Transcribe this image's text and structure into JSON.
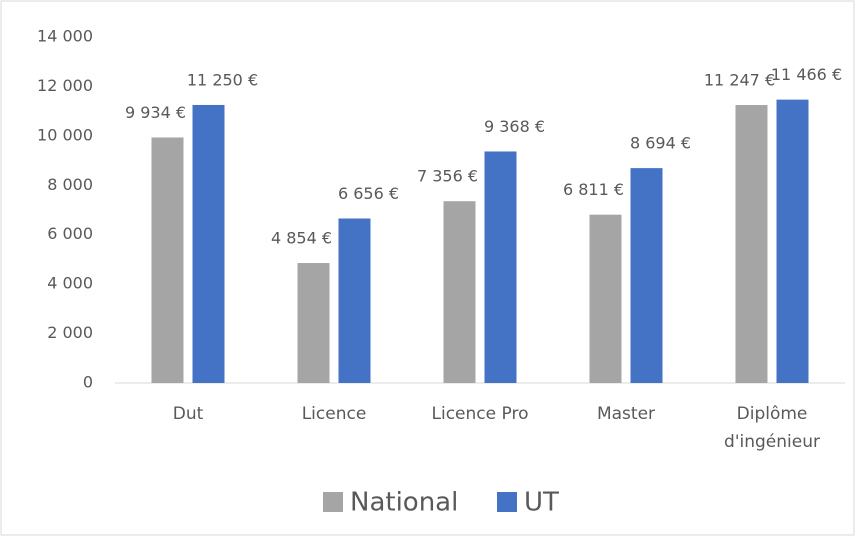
{
  "chart_data": {
    "type": "bar",
    "categories": [
      "Dut",
      "Licence",
      "Licence Pro",
      "Master",
      "Diplôme d'ingénieur"
    ],
    "series": [
      {
        "name": "National",
        "color": "#a5a5a5",
        "values": [
          9934,
          4854,
          7356,
          6811,
          11247
        ],
        "value_labels": [
          "9 934 €",
          "4 854 €",
          "7 356 €",
          "6 811 €",
          "11 247 €"
        ]
      },
      {
        "name": "UT",
        "color": "#4472c4",
        "values": [
          11250,
          6656,
          9368,
          8694,
          11466
        ],
        "value_labels": [
          "11 250 €",
          "6 656 €",
          "9 368 €",
          "8 694 €",
          "11 466 €"
        ]
      }
    ],
    "ylim": [
      0,
      14000
    ],
    "yticks": [
      0,
      {
        "value": 2000,
        "label": "2 000"
      },
      {
        "value": 4000,
        "label": "4 000"
      },
      {
        "value": 6000,
        "label": "6 000"
      },
      {
        "value": 8000,
        "label": "8 000"
      },
      {
        "value": 10000,
        "label": "10 000"
      },
      {
        "value": 12000,
        "label": "12 000"
      },
      {
        "value": 14000,
        "label": "14 000"
      }
    ],
    "grid": false,
    "legend": "bottom"
  }
}
